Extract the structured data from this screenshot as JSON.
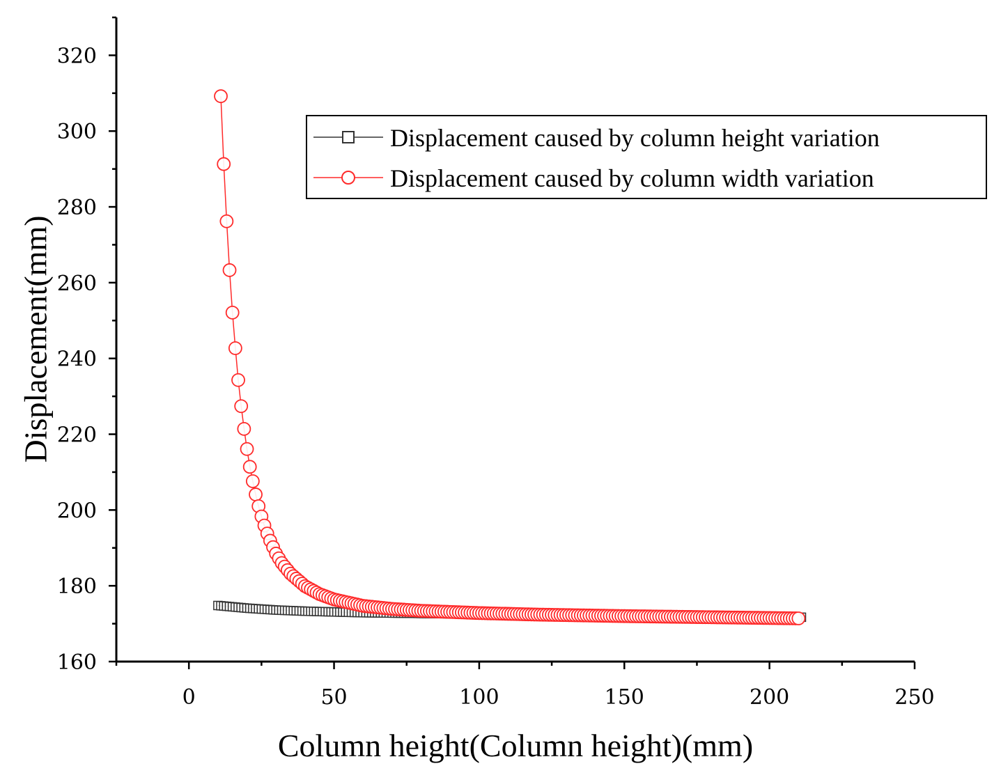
{
  "chart_data": {
    "type": "line",
    "title": "",
    "xlabel": "Column height(Column height)(mm)",
    "ylabel": "Displacement(mm)",
    "xlim": [
      -25,
      250
    ],
    "ylim": [
      160,
      330
    ],
    "xticks": [
      0,
      50,
      100,
      150,
      200,
      250
    ],
    "yticks": [
      160,
      180,
      200,
      220,
      240,
      260,
      280,
      300,
      320
    ],
    "xtick_labels": [
      "0",
      "50",
      "100",
      "150",
      "200",
      "250"
    ],
    "ytick_labels": [
      "160",
      "180",
      "200",
      "220",
      "240",
      "260",
      "280",
      "300",
      "320"
    ],
    "legend_position": "top-right",
    "series": [
      {
        "name": "Displacement caused by column height variation",
        "color": "#333333",
        "marker": "square",
        "x": [
          10,
          20,
          30,
          40,
          50,
          60,
          70,
          80,
          90,
          100,
          110,
          120,
          130,
          140,
          150,
          160,
          170,
          180,
          190,
          200,
          211
        ],
        "y": [
          174.8,
          174.1,
          173.6,
          173.3,
          173.1,
          172.9,
          172.8,
          172.7,
          172.6,
          172.5,
          172.4,
          172.3,
          172.2,
          172.1,
          172.0,
          171.9,
          171.9,
          171.8,
          171.8,
          171.7,
          171.7
        ]
      },
      {
        "name": "Displacement caused by column width variation",
        "color": "#ff2a2a",
        "marker": "circle",
        "x": [
          11,
          12,
          13,
          14,
          15,
          16,
          17,
          18,
          19,
          20,
          21,
          22,
          23,
          24,
          25,
          26,
          27,
          28,
          29,
          30,
          32,
          35,
          40,
          45,
          50,
          60,
          70,
          80,
          100,
          120,
          150,
          180,
          210
        ],
        "y": [
          309.2,
          291.3,
          276.2,
          263.3,
          252.1,
          242.7,
          234.3,
          227.4,
          221.4,
          216.1,
          211.4,
          207.6,
          204.1,
          201.0,
          198.3,
          195.9,
          193.8,
          191.9,
          190.2,
          188.5,
          186.0,
          183.2,
          179.9,
          177.8,
          176.4,
          174.7,
          173.9,
          173.4,
          172.8,
          172.4,
          172.0,
          171.7,
          171.4
        ]
      }
    ]
  }
}
